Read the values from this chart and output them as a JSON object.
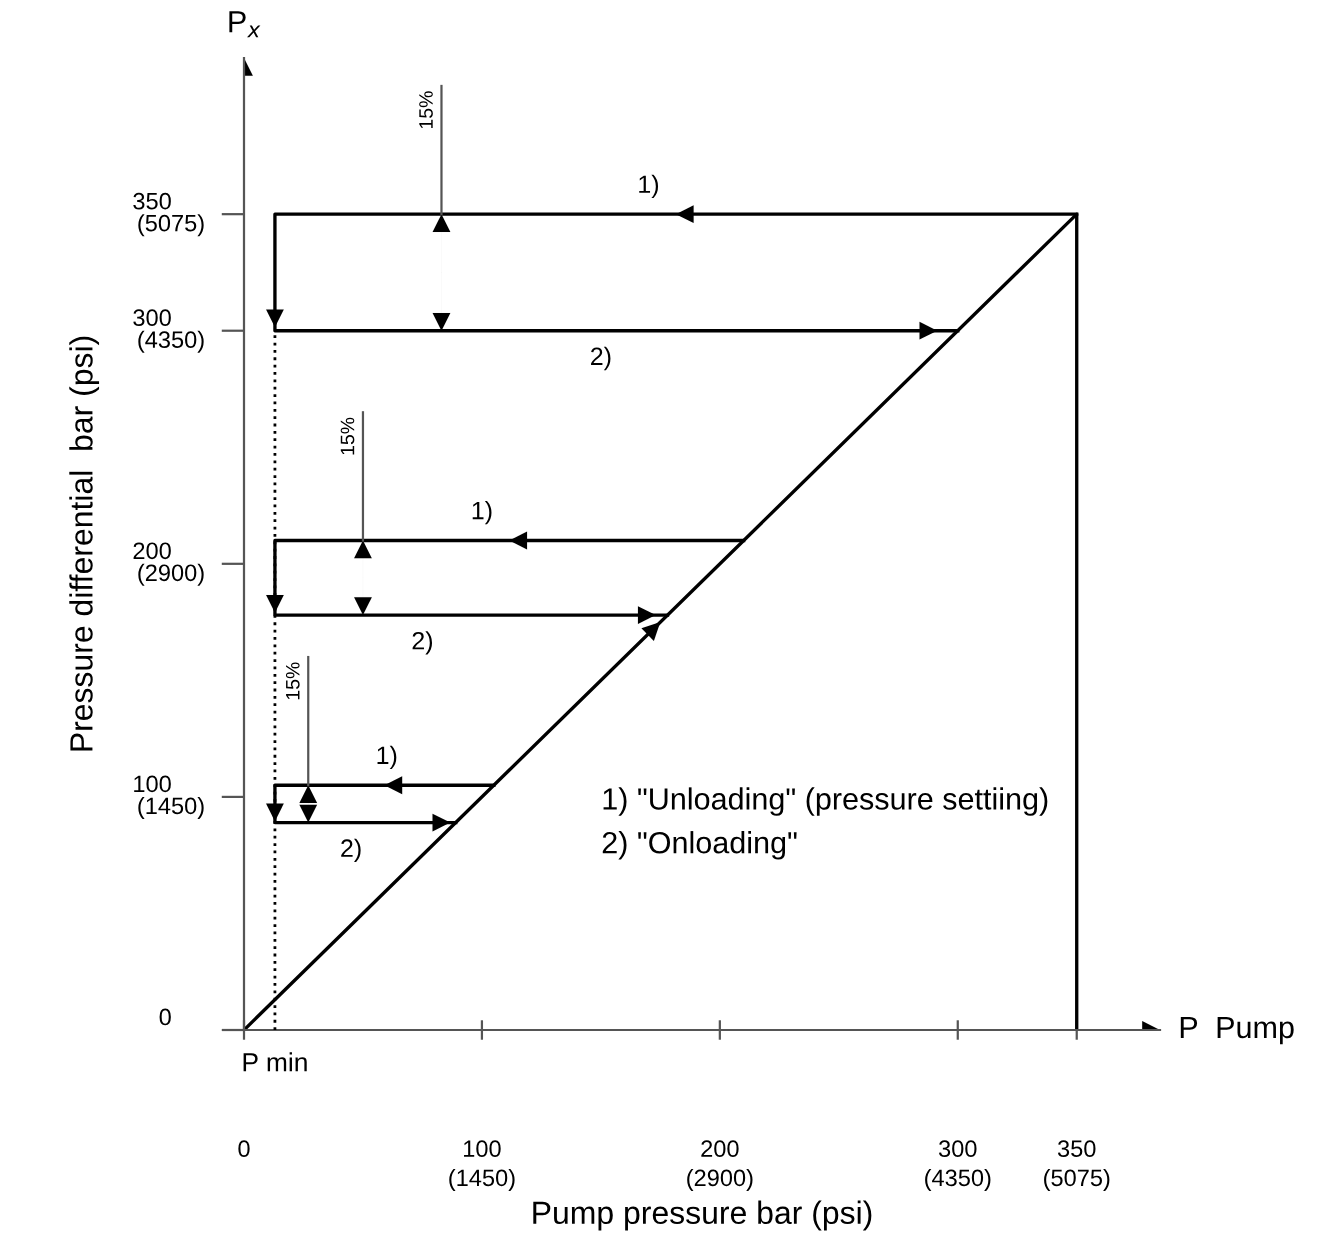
{
  "chart_data": {
    "type": "line",
    "xlabel": "Pump pressure bar (psi)",
    "ylabel": "Pressure differential  bar (psi)",
    "xlim": [
      0,
      385
    ],
    "ylim": [
      0,
      417
    ],
    "xticks": [
      0,
      100,
      200,
      300,
      350
    ],
    "yticks": [
      0,
      100,
      200,
      300,
      350
    ],
    "x2lim": [
      0,
      5582.5
    ],
    "x2ticks": [
      {
        "value": 1450,
        "label": "(1450)"
      },
      {
        "value": 2900,
        "label": "(2900)"
      },
      {
        "value": 4350,
        "label": "(4350)"
      },
      {
        "value": 5075,
        "label": "(5075)"
      }
    ],
    "y2lim": [
      0,
      6046.5
    ],
    "y2ticks": [
      {
        "value": 1450,
        "label": "(1450)"
      },
      {
        "value": 2900,
        "label": "(2900)"
      },
      {
        "value": 4350,
        "label": "(4350)"
      },
      {
        "value": 5075,
        "label": "(5075)"
      }
    ],
    "marker": "none",
    "line_style": "solid",
    "grid": false,
    "legend": false,
    "series": [
      {
        "color": "#000000",
        "x": [
          0,
          350,
          350
        ],
        "values": [
          0,
          350,
          0
        ]
      },
      {
        "color": "#000000",
        "x": [
          350,
          13,
          13,
          300
        ],
        "values": [
          350,
          350,
          300,
          300
        ]
      },
      {
        "color": "#000000",
        "x": [
          210,
          13,
          13,
          178
        ],
        "values": [
          210,
          210,
          178,
          178
        ]
      },
      {
        "color": "#000000",
        "x": [
          105,
          13,
          13,
          89
        ],
        "values": [
          105,
          105,
          89,
          89
        ]
      }
    ],
    "ref_lines": [
      {
        "axis": "x",
        "value": 13,
        "label": "P min",
        "line_style": "dotted",
        "color": "#000000"
      }
    ],
    "annotations": [
      {
        "text": "15%",
        "x": 83,
        "y": 350
      },
      {
        "text": "15%",
        "x": 50,
        "y": 210
      },
      {
        "text": "15%",
        "x": 27,
        "y": 105
      },
      {
        "text": "1)",
        "x": 170,
        "y": 350
      },
      {
        "text": "2)",
        "x": 150,
        "y": 300
      },
      {
        "text": "1)",
        "x": 100,
        "y": 210
      },
      {
        "text": "2)",
        "x": 75,
        "y": 178
      },
      {
        "text": "1)",
        "x": 60,
        "y": 105
      },
      {
        "text": "2)",
        "x": 45,
        "y": 89
      },
      "1) \"Unloading\" (pressure settiing)",
      "2) \"Onloading\"",
      "P$_{x}$",
      "P  Pump"
    ]
  }
}
